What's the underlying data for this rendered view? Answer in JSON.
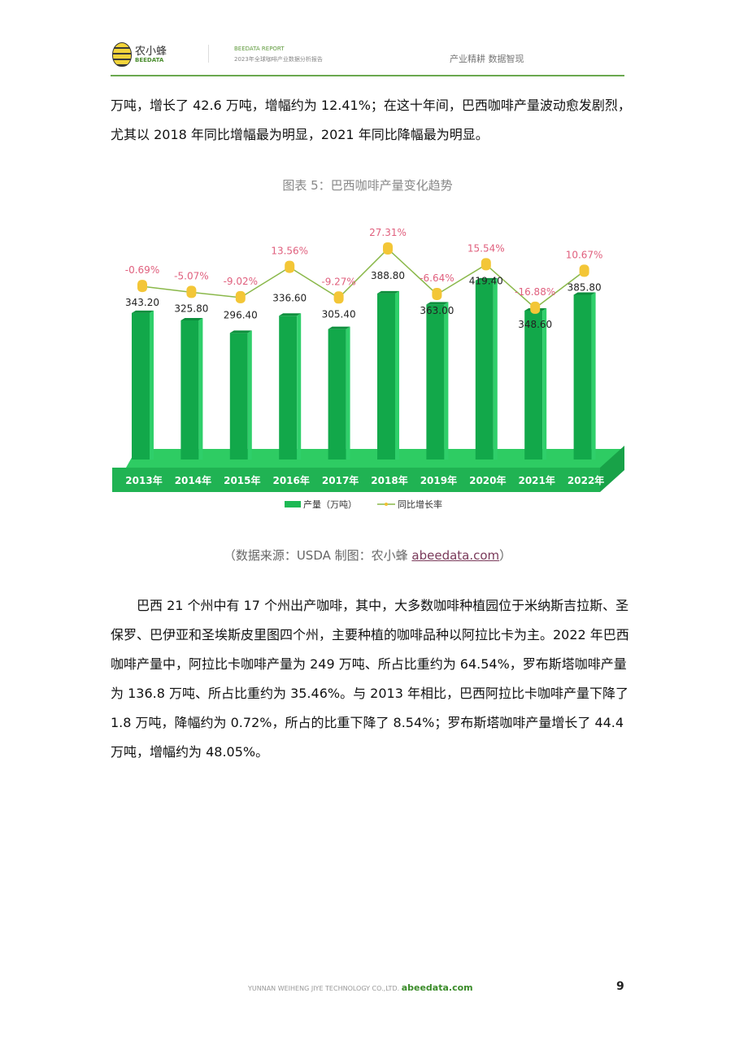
{
  "header": {
    "logo_text": "农小蜂",
    "logo_sub": "BEEDATA",
    "report_label": "BEEDATA REPORT",
    "report_title": "2023年全球咖啡产业数据分析报告",
    "slogan": "产业精耕  数据智现"
  },
  "paragraph1": "万吨，增长了 42.6 万吨，增幅约为 12.41%；在这十年间，巴西咖啡产量波动愈发剧烈，尤其以 2018 年同比增幅最为明显，2021 年同比降幅最为明显。",
  "figure_caption": "图表 5：巴西咖啡产量变化趋势",
  "source": {
    "text": "（数据来源：USDA   制图：农小蜂 ",
    "link": "abeedata.com",
    "close": "）"
  },
  "paragraph2": "巴西 21 个州中有 17 个州出产咖啡，其中，大多数咖啡种植园位于米纳斯吉拉斯、圣保罗、巴伊亚和圣埃斯皮里图四个州，主要种植的咖啡品种以阿拉比卡为主。2022 年巴西咖啡产量中，阿拉比卡咖啡产量为 249 万吨、所占比重约为 64.54%，罗布斯塔咖啡产量为 136.8 万吨、所占比重约为 35.46%。与 2013 年相比，巴西阿拉比卡咖啡产量下降了 1.8 万吨，降幅约为 0.72%，所占的比重下降了 8.54%；罗布斯塔咖啡产量增长了 44.4 万吨，增幅约为 48.05%。",
  "footer": {
    "company": "YUNNAN WEIHENG JIYE TECHNOLOGY CO.,LTD.",
    "site": "abeedata.com",
    "page": "9"
  },
  "chart_data": {
    "type": "bar",
    "categories": [
      "2013年",
      "2014年",
      "2015年",
      "2016年",
      "2017年",
      "2018年",
      "2019年",
      "2020年",
      "2021年",
      "2022年"
    ],
    "series": [
      {
        "name": "产量（万吨）",
        "type": "bar",
        "values": [
          343.2,
          325.8,
          296.4,
          336.6,
          305.4,
          388.8,
          363.0,
          419.4,
          348.6,
          385.8
        ],
        "labels": [
          "343.20",
          "325.80",
          "296.40",
          "336.60",
          "305.40",
          "388.80",
          "363.00",
          "419.40",
          "348.60",
          "385.80"
        ],
        "color": "#1db954"
      },
      {
        "name": "同比增长率",
        "type": "line",
        "values": [
          -0.69,
          -5.07,
          -9.02,
          13.56,
          -9.27,
          27.31,
          -6.64,
          15.54,
          -16.88,
          10.67
        ],
        "labels": [
          "-0.69%",
          "-5.07%",
          "-9.02%",
          "13.56%",
          "-9.27%",
          "27.31%",
          "-6.64%",
          "15.54%",
          "-16.88%",
          "10.67%"
        ],
        "color": "#8ab84a",
        "label_color": "#e0607e"
      }
    ],
    "grid": false,
    "legend": "bottom"
  }
}
